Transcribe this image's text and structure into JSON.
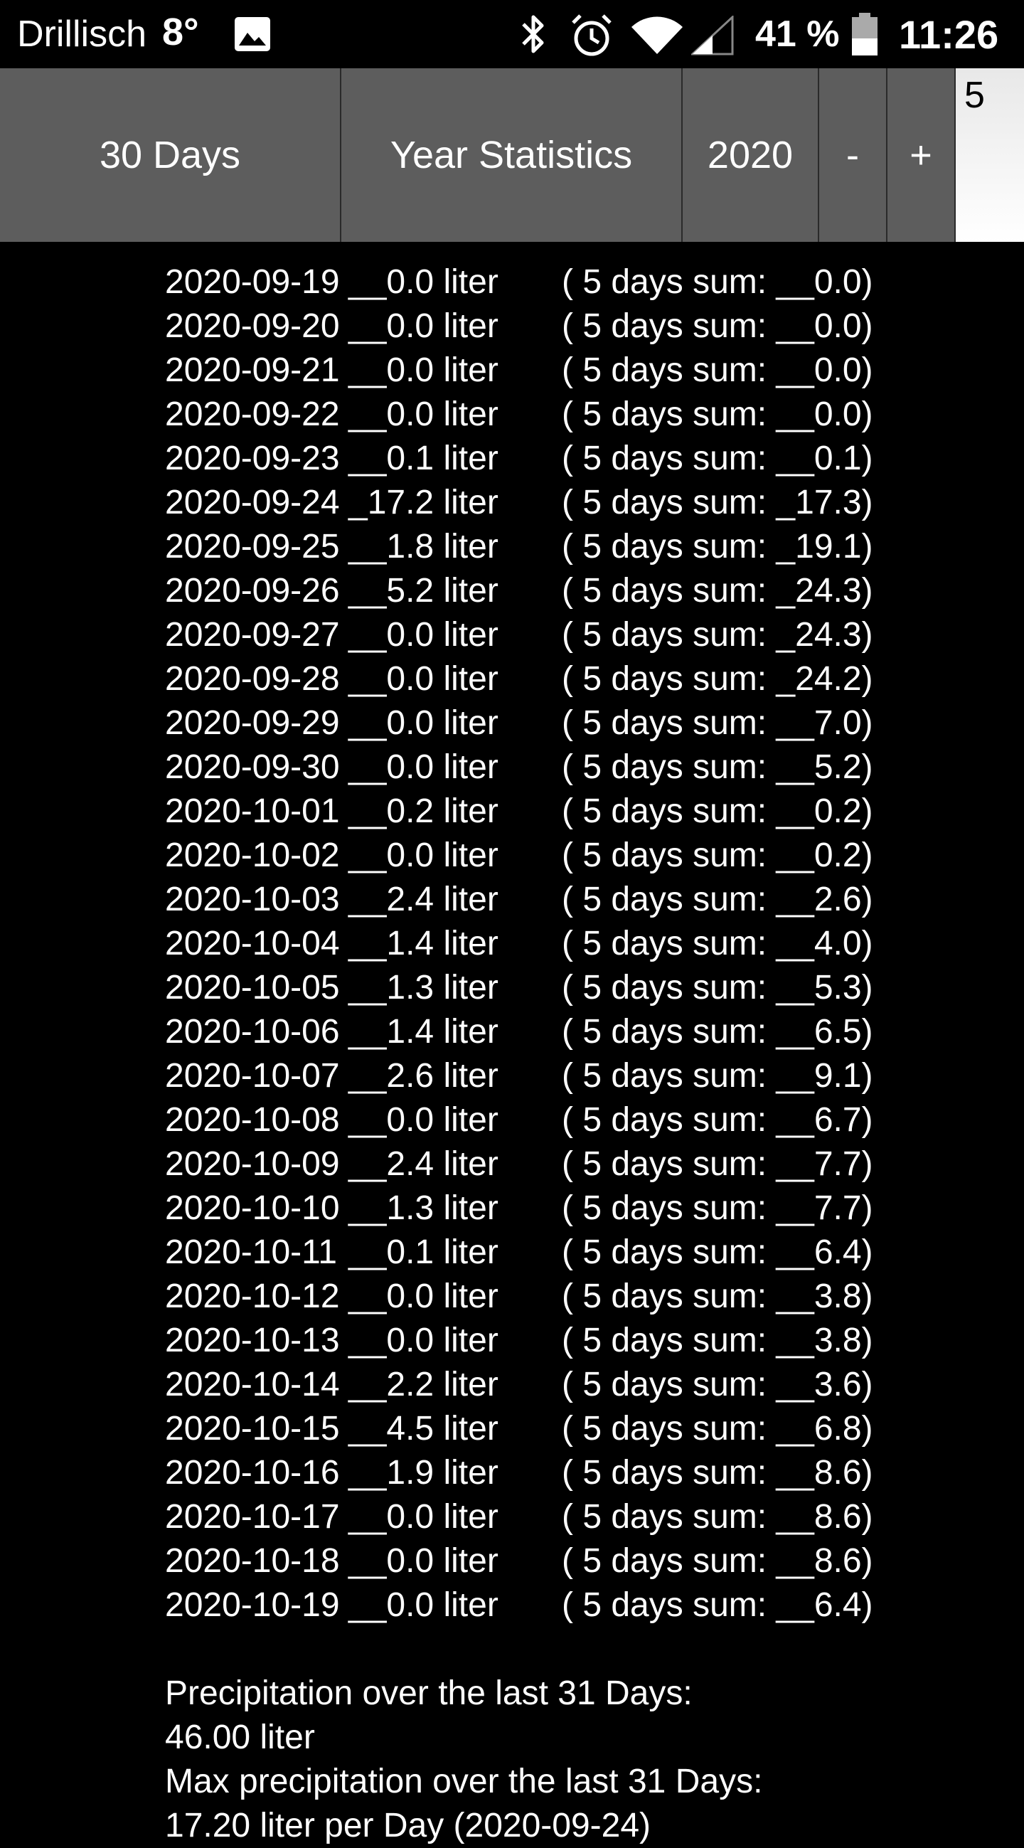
{
  "status_bar": {
    "carrier": "Drillisch",
    "temperature": "8°",
    "battery": "41 %",
    "time": "11:26",
    "icons": [
      "image-icon",
      "bluetooth-icon",
      "alarm-icon",
      "wifi-icon",
      "signal-icon",
      "battery-icon"
    ]
  },
  "toolbar": {
    "days_label": "30 Days",
    "year_stats_label": "Year Statistics",
    "year_label": "2020",
    "minus_label": "-",
    "plus_label": "+",
    "days_input_value": "5"
  },
  "rows": [
    {
      "date": "2020-09-19",
      "amount": "__0.0 liter",
      "sum": "( 5 days sum: __0.0)"
    },
    {
      "date": "2020-09-20",
      "amount": "__0.0 liter",
      "sum": "( 5 days sum: __0.0)"
    },
    {
      "date": "2020-09-21",
      "amount": "__0.0 liter",
      "sum": "( 5 days sum: __0.0)"
    },
    {
      "date": "2020-09-22",
      "amount": "__0.0 liter",
      "sum": "( 5 days sum: __0.0)"
    },
    {
      "date": "2020-09-23",
      "amount": "__0.1 liter",
      "sum": "( 5 days sum: __0.1)"
    },
    {
      "date": "2020-09-24",
      "amount": "_17.2 liter",
      "sum": "( 5 days sum: _17.3)"
    },
    {
      "date": "2020-09-25",
      "amount": "__1.8 liter",
      "sum": "( 5 days sum: _19.1)"
    },
    {
      "date": "2020-09-26",
      "amount": "__5.2 liter",
      "sum": "( 5 days sum: _24.3)"
    },
    {
      "date": "2020-09-27",
      "amount": "__0.0 liter",
      "sum": "( 5 days sum: _24.3)"
    },
    {
      "date": "2020-09-28",
      "amount": "__0.0 liter",
      "sum": "( 5 days sum: _24.2)"
    },
    {
      "date": "2020-09-29",
      "amount": "__0.0 liter",
      "sum": "( 5 days sum: __7.0)"
    },
    {
      "date": "2020-09-30",
      "amount": "__0.0 liter",
      "sum": "( 5 days sum: __5.2)"
    },
    {
      "date": "2020-10-01",
      "amount": "__0.2 liter",
      "sum": "( 5 days sum: __0.2)"
    },
    {
      "date": "2020-10-02",
      "amount": "__0.0 liter",
      "sum": "( 5 days sum: __0.2)"
    },
    {
      "date": "2020-10-03",
      "amount": "__2.4 liter",
      "sum": "( 5 days sum: __2.6)"
    },
    {
      "date": "2020-10-04",
      "amount": "__1.4 liter",
      "sum": "( 5 days sum: __4.0)"
    },
    {
      "date": "2020-10-05",
      "amount": "__1.3 liter",
      "sum": "( 5 days sum: __5.3)"
    },
    {
      "date": "2020-10-06",
      "amount": "__1.4 liter",
      "sum": "( 5 days sum: __6.5)"
    },
    {
      "date": "2020-10-07",
      "amount": "__2.6 liter",
      "sum": "( 5 days sum: __9.1)"
    },
    {
      "date": "2020-10-08",
      "amount": "__0.0 liter",
      "sum": "( 5 days sum: __6.7)"
    },
    {
      "date": "2020-10-09",
      "amount": "__2.4 liter",
      "sum": "( 5 days sum: __7.7)"
    },
    {
      "date": "2020-10-10",
      "amount": "__1.3 liter",
      "sum": "( 5 days sum: __7.7)"
    },
    {
      "date": "2020-10-11",
      "amount": "__0.1 liter",
      "sum": "( 5 days sum: __6.4)"
    },
    {
      "date": "2020-10-12",
      "amount": "__0.0 liter",
      "sum": "( 5 days sum: __3.8)"
    },
    {
      "date": "2020-10-13",
      "amount": "__0.0 liter",
      "sum": "( 5 days sum: __3.8)"
    },
    {
      "date": "2020-10-14",
      "amount": "__2.2 liter",
      "sum": "( 5 days sum: __3.6)"
    },
    {
      "date": "2020-10-15",
      "amount": "__4.5 liter",
      "sum": "( 5 days sum: __6.8)"
    },
    {
      "date": "2020-10-16",
      "amount": "__1.9 liter",
      "sum": "( 5 days sum: __8.6)"
    },
    {
      "date": "2020-10-17",
      "amount": "__0.0 liter",
      "sum": "( 5 days sum: __8.6)"
    },
    {
      "date": "2020-10-18",
      "amount": "__0.0 liter",
      "sum": "( 5 days sum: __8.6)"
    },
    {
      "date": "2020-10-19",
      "amount": "__0.0 liter",
      "sum": "( 5 days sum: __6.4)"
    }
  ],
  "summary": {
    "total_label": "Precipitation over the last 31 Days:",
    "total_value": "46.00 liter",
    "max_label": "Max precipitation over the last 31 Days:",
    "max_value": "17.20 liter per Day (2020-09-24)"
  }
}
